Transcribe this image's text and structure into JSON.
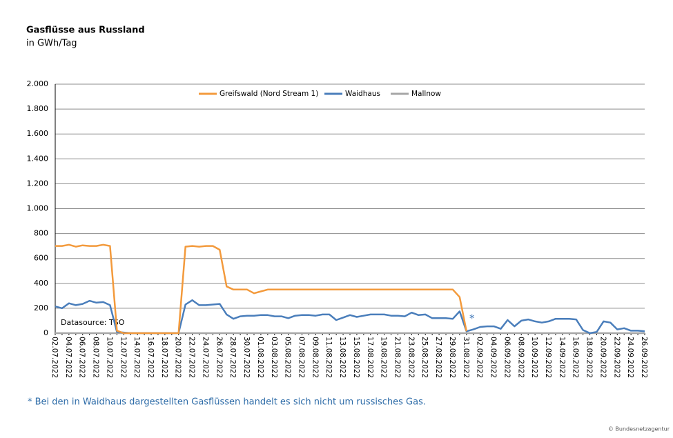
{
  "chart_data": {
    "type": "line",
    "title": "Gasflüsse aus Russland",
    "subtitle": "in GWh/Tag",
    "annotation": "Datasource: TSO",
    "marker_note": "*",
    "footnote": "* Bei den in Waidhaus dargestellten Gasflüssen handelt es sich nicht um russisches Gas.",
    "source": "© Bundesnetzagentur",
    "categories": [
      "02.07.2022",
      null,
      "04.07.2022",
      null,
      "06.07.2022",
      null,
      "08.07.2022",
      null,
      "10.07.2022",
      null,
      "12.07.2022",
      null,
      "14.07.2022",
      null,
      "16.07.2022",
      null,
      "18.07.2022",
      null,
      "20.07.2022",
      null,
      "22.07.2022",
      null,
      "24.07.2022",
      null,
      "26.07.2022",
      null,
      "28.07.2022",
      null,
      "30.07.2022",
      null,
      "01.08.2022",
      null,
      "03.08.2022",
      null,
      "05.08.2022",
      null,
      "07.08.2022",
      null,
      "09.08.2022",
      null,
      "11.08.2022",
      null,
      "13.08.2022",
      null,
      "15.08.2022",
      null,
      "17.08.2022",
      null,
      "19.08.2022",
      null,
      "21.08.2022",
      null,
      "23.08.2022",
      null,
      "25.08.2022",
      null,
      "27.08.2022",
      null,
      "29.08.2022",
      null,
      "31.08.2022",
      null,
      "02.09.2022",
      null,
      "04.09.2022",
      null,
      "06.09.2022",
      null,
      "08.09.2022",
      null,
      "10.09.2022",
      null,
      "12.09.2022",
      null,
      "14.09.2022",
      null,
      "16.09.2022",
      null,
      "18.09.2022",
      null,
      "20.09.2022",
      null,
      "22.09.2022",
      null,
      "24.09.2022",
      null,
      "26.09.2022"
    ],
    "series": [
      {
        "name": "Greifswald (Nord Stream 1)",
        "color": "#f39a3c",
        "values": [
          700,
          700,
          710,
          695,
          705,
          700,
          700,
          710,
          700,
          20,
          0,
          0,
          0,
          0,
          0,
          0,
          0,
          0,
          0,
          695,
          700,
          695,
          700,
          700,
          670,
          375,
          350,
          350,
          350,
          320,
          335,
          350,
          350,
          350,
          350,
          350,
          350,
          350,
          350,
          350,
          350,
          350,
          350,
          350,
          350,
          350,
          350,
          350,
          350,
          350,
          350,
          350,
          350,
          350,
          350,
          350,
          350,
          350,
          350,
          290,
          15,
          null,
          null,
          null,
          null,
          null,
          null,
          null,
          null,
          null,
          null,
          null,
          null,
          null,
          null,
          null,
          null,
          null,
          null,
          null,
          null,
          null,
          null,
          null,
          null,
          null,
          null
        ]
      },
      {
        "name": "Waidhaus",
        "color": "#4a7ebb",
        "values": [
          215,
          200,
          240,
          225,
          235,
          260,
          245,
          250,
          225,
          10,
          5,
          0,
          0,
          0,
          0,
          0,
          0,
          0,
          0,
          230,
          265,
          225,
          225,
          230,
          235,
          150,
          115,
          135,
          140,
          140,
          145,
          145,
          135,
          135,
          120,
          140,
          145,
          145,
          140,
          150,
          150,
          105,
          125,
          145,
          130,
          140,
          150,
          150,
          150,
          140,
          140,
          135,
          165,
          145,
          150,
          120,
          120,
          120,
          115,
          175,
          15,
          30,
          50,
          55,
          55,
          35,
          105,
          55,
          100,
          110,
          95,
          85,
          95,
          115,
          115,
          115,
          110,
          25,
          0,
          10,
          95,
          85,
          30,
          40,
          20,
          20,
          15
        ]
      },
      {
        "name": "Mallnow",
        "color": "#a6a6a6",
        "values": [
          0,
          0,
          0,
          0,
          0,
          0,
          0,
          0,
          0,
          0,
          0,
          0,
          0,
          0,
          0,
          0,
          0,
          0,
          0,
          0,
          0,
          0,
          0,
          0,
          0,
          0,
          0,
          0,
          0,
          0,
          0,
          0,
          0,
          0,
          0,
          0,
          0,
          0,
          0,
          0,
          0,
          0,
          0,
          0,
          0,
          0,
          0,
          0,
          0,
          0,
          0,
          0,
          0,
          0,
          0,
          0,
          0,
          0,
          0,
          0,
          0,
          0,
          0,
          0,
          0,
          0,
          0,
          0,
          0,
          0,
          0,
          0,
          0,
          0,
          0,
          0,
          0,
          0,
          0,
          0,
          0,
          0,
          0,
          0,
          0,
          0,
          0
        ]
      }
    ],
    "ylim": [
      0,
      2000
    ],
    "yticks": [
      0,
      200,
      400,
      600,
      800,
      {
        "value": 1000,
        "label": "1.000"
      },
      {
        "value": 1200,
        "label": "1.200"
      },
      {
        "value": 1400,
        "label": "1.400"
      },
      {
        "value": 1600,
        "label": "1.600"
      },
      {
        "value": 1800,
        "label": "1.800"
      },
      {
        "value": 2000,
        "label": "2.000"
      }
    ],
    "grid": true,
    "legend": "top"
  }
}
